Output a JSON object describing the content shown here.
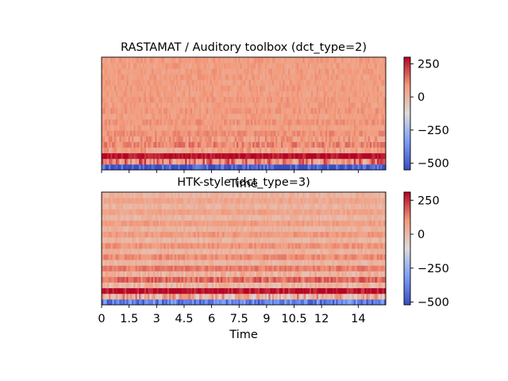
{
  "chart_data": [
    {
      "type": "heatmap",
      "title": "RASTAMAT / Auditory toolbox (dct_type=2)",
      "xlabel": "Time",
      "ylabel": "",
      "xlim": [
        0,
        15.5
      ],
      "rows": 20,
      "columns": 160,
      "colormap": "coolwarm",
      "colorbar": {
        "ticks": [
          250,
          0,
          -250,
          -500
        ],
        "tick_labels": [
          "250",
          "0",
          "−250",
          "−500"
        ],
        "vmin": -550,
        "vmax": 300
      },
      "row_levels": [
        -520,
        110,
        290,
        60,
        115,
        75,
        100,
        70,
        90,
        70,
        85,
        70,
        80,
        70,
        75,
        72,
        75,
        72,
        72,
        72
      ],
      "x_tick_labels_shown": false
    },
    {
      "type": "heatmap",
      "title": "HTK-style (dct_type=3)",
      "xlabel": "Time",
      "ylabel": "",
      "xlim": [
        0,
        15.5
      ],
      "x_ticks": [
        0,
        1.5,
        3,
        4.5,
        6,
        7.5,
        9,
        10.5,
        12,
        14
      ],
      "x_tick_labels": [
        "0",
        "1.5",
        "3",
        "4.5",
        "6",
        "7.5",
        "9",
        "10.5",
        "12",
        "14"
      ],
      "rows": 20,
      "columns": 160,
      "colormap": "coolwarm",
      "colorbar": {
        "ticks": [
          250,
          0,
          -250,
          -500
        ],
        "tick_labels": [
          "250",
          "0",
          "−250",
          "−500"
        ],
        "vmin": -520,
        "vmax": 310
      },
      "row_levels": [
        -380,
        40,
        290,
        20,
        170,
        30,
        140,
        20,
        120,
        25,
        105,
        20,
        95,
        25,
        85,
        20,
        75,
        25,
        65,
        25
      ]
    }
  ]
}
